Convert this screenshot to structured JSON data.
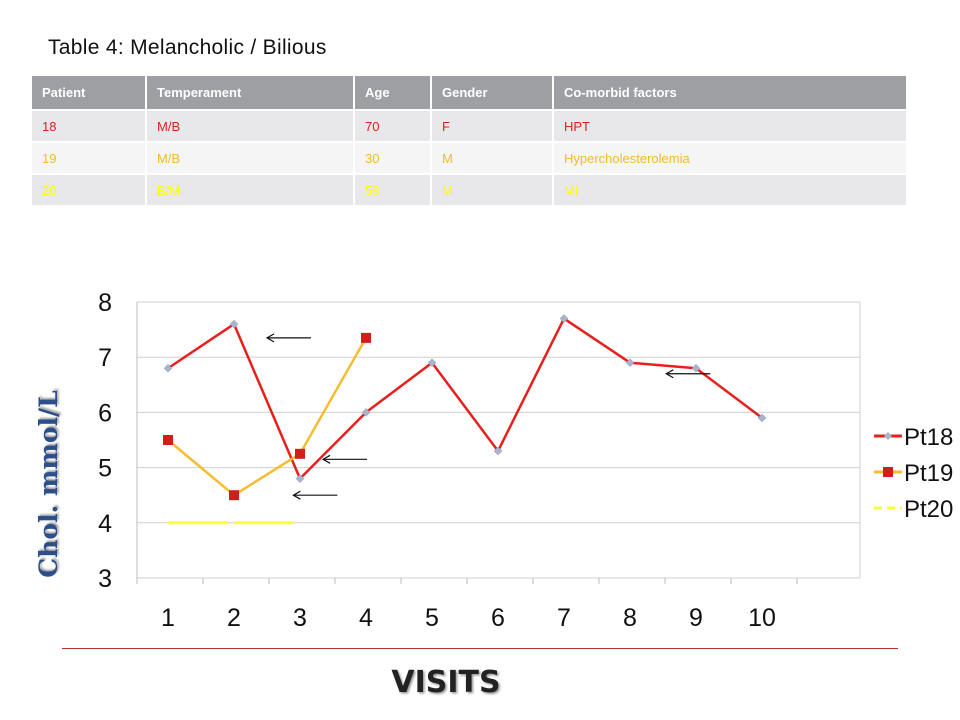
{
  "slide": {
    "title": "Table 4: Melancholic / Bilious"
  },
  "table": {
    "headers": [
      "Patient",
      "Temperament",
      "Age",
      "Gender",
      "Co-morbid factors"
    ],
    "rows": [
      {
        "cells": [
          "18",
          "M/B",
          "70",
          "F",
          "HPT"
        ],
        "color": "#e0201d"
      },
      {
        "cells": [
          "19",
          "M/B",
          "30",
          "M",
          "Hypercholesterolemia"
        ],
        "color": "#f4b92c"
      },
      {
        "cells": [
          "20",
          "B/M",
          "58",
          "M",
          "MI"
        ],
        "color": "#ffff00"
      }
    ]
  },
  "chart_data": {
    "type": "line",
    "xlabel": "VISITS",
    "ylabel": "Chol. mmol/L",
    "ylim": [
      3,
      8
    ],
    "yticks": [
      "3",
      "4",
      "5",
      "6",
      "7",
      "8"
    ],
    "categories": [
      "1",
      "2",
      "3",
      "4",
      "5",
      "6",
      "7",
      "8",
      "9",
      "10"
    ],
    "series": [
      {
        "name": "Pt18",
        "color": "#e8201d",
        "marker": "diamond",
        "marker_color": "#a9b4cc",
        "values": [
          6.8,
          7.6,
          4.8,
          6.0,
          6.9,
          5.3,
          7.7,
          6.9,
          6.8,
          5.9
        ]
      },
      {
        "name": "Pt19",
        "color": "#f6bd30",
        "marker": "square",
        "marker_color": "#d21e1b",
        "values": [
          5.5,
          4.5,
          5.25,
          7.35,
          null,
          null,
          null,
          null,
          null,
          null
        ]
      },
      {
        "name": "Pt20",
        "color": "#ffff33",
        "marker": "none",
        "dashed": true,
        "values": [
          4.0,
          4.0,
          4.0,
          null,
          null,
          null,
          null,
          null,
          null,
          null
        ]
      }
    ],
    "annotations": [
      {
        "type": "arrow-left",
        "x": 2.5,
        "y": 7.35
      },
      {
        "type": "arrow-left",
        "x": 3.35,
        "y": 5.15
      },
      {
        "type": "arrow-left",
        "x": 2.9,
        "y": 4.5
      },
      {
        "type": "arrow-left",
        "x": 8.55,
        "y": 6.7
      }
    ],
    "grid": true,
    "legend_position": "right"
  }
}
